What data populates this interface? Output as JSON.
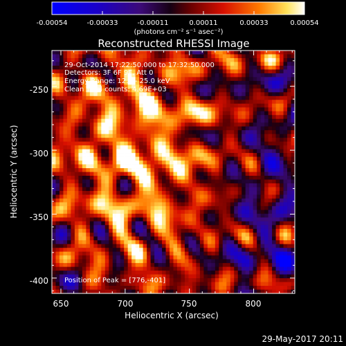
{
  "colorbar": {
    "tick_labels": [
      "-0.00054",
      "-0.00033",
      "-0.00011",
      "0.00011",
      "0.00033",
      "0.00054"
    ],
    "units_label": "(photons cm⁻² s⁻¹ asec⁻²)"
  },
  "chart_data": {
    "type": "heatmap",
    "title": "Reconstructed RHESSI Image",
    "xlabel": "Heliocentric X (arcsec)",
    "ylabel": "Heliocentric Y (arcsec)",
    "xlim": [
      643,
      832
    ],
    "ylim": [
      -412,
      -222
    ],
    "x_ticks": [
      650,
      700,
      750,
      800
    ],
    "y_ticks": [
      -250,
      -300,
      -350,
      -400
    ],
    "color_range": [
      -0.00054,
      0.00054
    ],
    "colormap": "blue-purple-red-yellow-white",
    "peak": [
      776,
      -401
    ]
  },
  "annotations": {
    "time_range": "29-Oct-2014 17:22:50.000 to 17:32:50.000",
    "detectors": "Detectors: 3F 6F 9F, Att 0",
    "energy_range": "Energy Range: 12.0 - 25.0 keV",
    "clean_counts": "Clean   Total counts: 4.69E+03",
    "peak_position": "Position of Peak = [776,-401]"
  },
  "footer": {
    "timestamp": "29-May-2017 20:11"
  }
}
